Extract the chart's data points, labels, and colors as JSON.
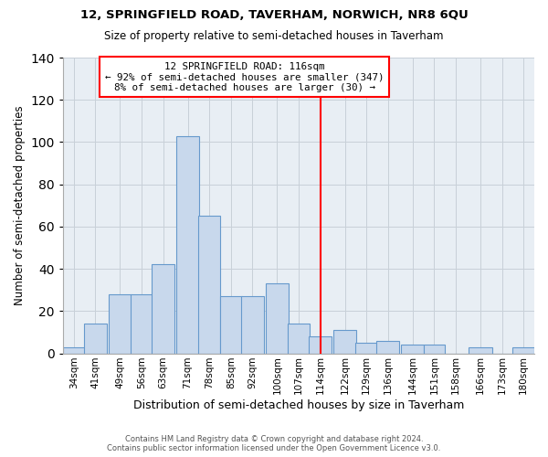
{
  "title": "12, SPRINGFIELD ROAD, TAVERHAM, NORWICH, NR8 6QU",
  "subtitle": "Size of property relative to semi-detached houses in Taverham",
  "xlabel": "Distribution of semi-detached houses by size in Taverham",
  "ylabel": "Number of semi-detached properties",
  "bin_labels": [
    "34sqm",
    "41sqm",
    "49sqm",
    "56sqm",
    "63sqm",
    "71sqm",
    "78sqm",
    "85sqm",
    "92sqm",
    "100sqm",
    "107sqm",
    "114sqm",
    "122sqm",
    "129sqm",
    "136sqm",
    "144sqm",
    "151sqm",
    "158sqm",
    "166sqm",
    "173sqm",
    "180sqm"
  ],
  "bin_centers": [
    34,
    41,
    49,
    56,
    63,
    71,
    78,
    85,
    92,
    100,
    107,
    114,
    122,
    129,
    136,
    144,
    151,
    158,
    166,
    173,
    180
  ],
  "bar_heights": [
    3,
    14,
    28,
    28,
    42,
    103,
    65,
    27,
    27,
    33,
    14,
    8,
    11,
    5,
    6,
    4,
    4,
    0,
    3,
    0,
    3
  ],
  "bar_color": "#c8d8ec",
  "bar_edge_color": "#6699cc",
  "property_line_x": 114,
  "ylim": [
    0,
    140
  ],
  "yticks": [
    0,
    20,
    40,
    60,
    80,
    100,
    120,
    140
  ],
  "annotation_title": "12 SPRINGFIELD ROAD: 116sqm",
  "annotation_line1": "← 92% of semi-detached houses are smaller (347)",
  "annotation_line2": "8% of semi-detached houses are larger (30) →",
  "footer_line1": "Contains HM Land Registry data © Crown copyright and database right 2024.",
  "footer_line2": "Contains public sector information licensed under the Open Government Licence v3.0.",
  "grid_color": "#c8d0d8",
  "background_color": "#e8eef4"
}
